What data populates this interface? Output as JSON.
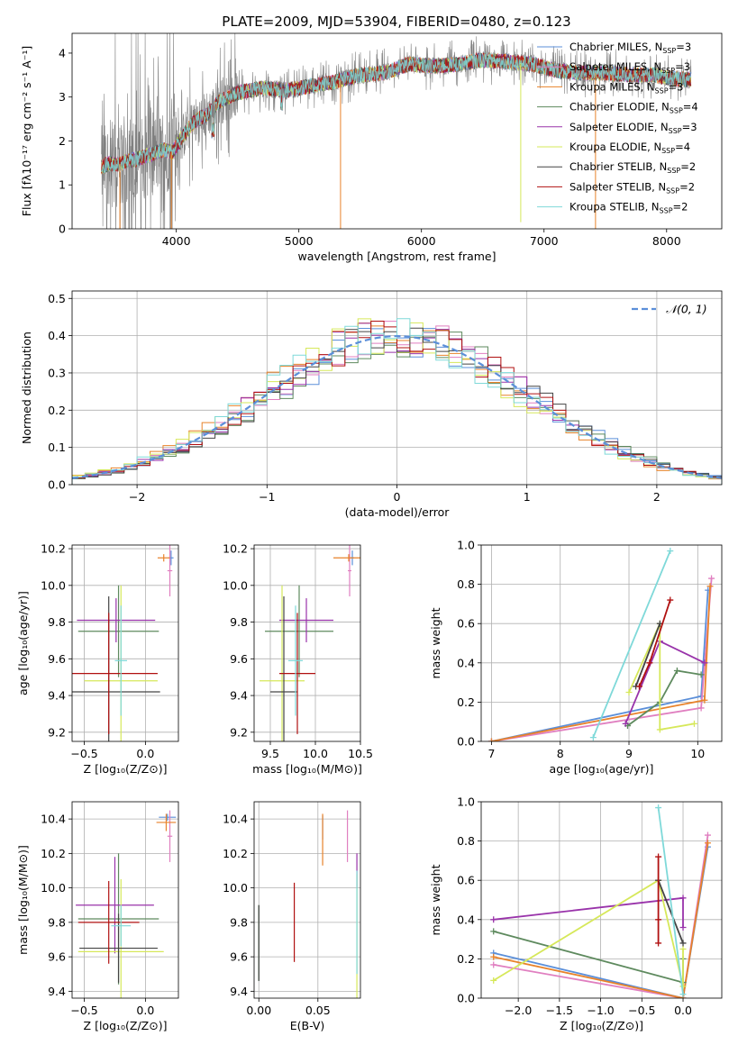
{
  "figure_title": "PLATE=2009, MJD=53904, FIBERID=0480, z=0.123",
  "colors": {
    "chabrier_miles": "#5b8fd9",
    "salpeter_miles": "#e07fc0",
    "kroupa_miles": "#e8822a",
    "chabrier_elodie": "#5e8a5e",
    "salpeter_elodie": "#9933aa",
    "kroupa_elodie": "#d6e85a",
    "chabrier_stelib": "#444444",
    "salpeter_stelib": "#b01010",
    "kroupa_stelib": "#7fd9d9",
    "data": "#808080",
    "normal": "#5b8fd9"
  },
  "chart_data": [
    {
      "id": "spectrum",
      "type": "line",
      "title": "",
      "xlabel": "wavelength [Angstrom, rest frame]",
      "ylabel": "Flux [fλ10⁻¹⁷ erg cm⁻² s⁻¹ A⁻¹]",
      "xlim": [
        3150,
        8450
      ],
      "ylim": [
        0,
        4.45
      ],
      "xticks": [
        4000,
        5000,
        6000,
        7000,
        8000
      ],
      "yticks": [
        0,
        1,
        2,
        3,
        4
      ],
      "grid": false,
      "legend_position": "top-right",
      "legend": [
        {
          "label": "Chabrier MILES, N",
          "sub": "SSP",
          "tail": "=3",
          "color": "#5b8fd9"
        },
        {
          "label": "Salpeter MILES, N",
          "sub": "SSP",
          "tail": "=3",
          "color": "#e07fc0"
        },
        {
          "label": "Kroupa MILES, N",
          "sub": "SSP",
          "tail": "=3",
          "color": "#e8822a"
        },
        {
          "label": "Chabrier ELODIE, N",
          "sub": "SSP",
          "tail": "=4",
          "color": "#5e8a5e"
        },
        {
          "label": "Salpeter ELODIE, N",
          "sub": "SSP",
          "tail": "=3",
          "color": "#9933aa"
        },
        {
          "label": "Kroupa ELODIE, N",
          "sub": "SSP",
          "tail": "=4",
          "color": "#d6e85a"
        },
        {
          "label": "Chabrier STELIB, N",
          "sub": "SSP",
          "tail": "=2",
          "color": "#444444"
        },
        {
          "label": "Salpeter STELIB, N",
          "sub": "SSP",
          "tail": "=2",
          "color": "#b01010"
        },
        {
          "label": "Kroupa STELIB, N",
          "sub": "SSP",
          "tail": "=2",
          "color": "#7fd9d9"
        }
      ],
      "continuum": {
        "x": [
          3390,
          3450,
          3520,
          3600,
          3700,
          3800,
          3900,
          3970,
          4050,
          4150,
          4250,
          4350,
          4500,
          4700,
          4900,
          5100,
          5300,
          5500,
          5700,
          5900,
          6100,
          6300,
          6500,
          6700,
          6900,
          7100,
          7300,
          7500,
          7700,
          7900,
          8100
        ],
        "y": [
          1.4,
          1.5,
          1.45,
          1.55,
          1.6,
          1.7,
          1.8,
          1.75,
          2.1,
          2.45,
          2.6,
          2.9,
          3.1,
          3.2,
          3.15,
          3.25,
          3.35,
          3.5,
          3.55,
          3.75,
          3.7,
          3.75,
          3.85,
          3.8,
          3.75,
          3.6,
          3.55,
          3.55,
          3.5,
          3.5,
          3.4
        ]
      }
    },
    {
      "id": "residuals",
      "type": "bar",
      "title": "",
      "xlabel": "(data-model)/error",
      "ylabel": "Normed distribution",
      "xlim": [
        -2.5,
        2.5
      ],
      "ylim": [
        0,
        0.52
      ],
      "xticks": [
        -2,
        -1,
        0,
        1,
        2
      ],
      "yticks": [
        0.0,
        0.1,
        0.2,
        0.3,
        0.4,
        0.5
      ],
      "grid": true,
      "legend_position": "top-right",
      "normal_label": "𝒩(0, 1)"
    },
    {
      "id": "age_vs_Z",
      "type": "scatter",
      "xlabel": "Z [log₁₀(Z/Z⊙)]",
      "ylabel": "age  [log₁₀(age/yr)]",
      "xlim": [
        -0.6,
        0.27
      ],
      "ylim": [
        9.15,
        10.22
      ],
      "xticks": [
        -0.5,
        0.0
      ],
      "yticks": [
        9.2,
        9.4,
        9.6,
        9.8,
        10.0,
        10.2
      ],
      "grid": true,
      "points": [
        {
          "color": "#5b8fd9",
          "x": 0.21,
          "xerr": 0.02,
          "y": 10.15,
          "yerr": 0.04
        },
        {
          "color": "#e07fc0",
          "x": 0.2,
          "xerr": 0.02,
          "y": 10.08,
          "yerr": 0.14
        },
        {
          "color": "#e8822a",
          "x": 0.15,
          "xerr": 0.05,
          "y": 10.15,
          "yerr": 0.02
        },
        {
          "color": "#5e8a5e",
          "x": -0.22,
          "xerr": 0.33,
          "y": 9.75,
          "yerr": 0.25
        },
        {
          "color": "#9933aa",
          "x": -0.24,
          "xerr": 0.32,
          "y": 9.81,
          "yerr": 0.12
        },
        {
          "color": "#d6e85a",
          "x": -0.2,
          "xerr": 0.3,
          "y": 9.48,
          "yerr": 0.52
        },
        {
          "color": "#444444",
          "x": -0.3,
          "xerr": 0.42,
          "y": 9.42,
          "yerr": 0.52
        },
        {
          "color": "#b01010",
          "x": -0.3,
          "xerr": 0.4,
          "y": 9.52,
          "yerr": 0.33
        },
        {
          "color": "#7fd9d9",
          "x": -0.2,
          "xerr": 0.05,
          "y": 9.59,
          "yerr": 0.3
        }
      ]
    },
    {
      "id": "age_vs_mass",
      "type": "scatter",
      "xlabel": "mass [log₁₀(M/M⊙)]",
      "ylabel": "",
      "xlim": [
        9.32,
        10.5
      ],
      "ylim": [
        9.15,
        10.22
      ],
      "xticks": [
        9.5,
        10.0,
        10.5
      ],
      "yticks": [
        9.2,
        9.4,
        9.6,
        9.8,
        10.0,
        10.2
      ],
      "grid": true,
      "points": [
        {
          "color": "#5b8fd9",
          "x": 10.41,
          "xerr": 0.02,
          "y": 10.15,
          "yerr": 0.04
        },
        {
          "color": "#e07fc0",
          "x": 10.38,
          "xerr": 0.02,
          "y": 10.08,
          "yerr": 0.14
        },
        {
          "color": "#e8822a",
          "x": 10.37,
          "xerr": 0.17,
          "y": 10.15,
          "yerr": 0.02
        },
        {
          "color": "#5e8a5e",
          "x": 9.82,
          "xerr": 0.38,
          "y": 9.75,
          "yerr": 0.25
        },
        {
          "color": "#9933aa",
          "x": 9.9,
          "xerr": 0.3,
          "y": 9.81,
          "yerr": 0.12
        },
        {
          "color": "#d6e85a",
          "x": 9.63,
          "xerr": 0.25,
          "y": 9.48,
          "yerr": 0.52
        },
        {
          "color": "#444444",
          "x": 9.65,
          "xerr": 0.15,
          "y": 9.42,
          "yerr": 0.52
        },
        {
          "color": "#b01010",
          "x": 9.8,
          "xerr": 0.2,
          "y": 9.52,
          "yerr": 0.33
        },
        {
          "color": "#7fd9d9",
          "x": 9.78,
          "xerr": 0.08,
          "y": 9.59,
          "yerr": 0.3
        }
      ]
    },
    {
      "id": "massweight_vs_age",
      "type": "line",
      "xlabel": "age  [log₁₀(age/yr)]",
      "ylabel": "mass weight",
      "xlim": [
        6.85,
        10.35
      ],
      "ylim": [
        0,
        1.0
      ],
      "xticks": [
        7,
        8,
        9,
        10
      ],
      "yticks": [
        0.0,
        0.2,
        0.4,
        0.6,
        0.8,
        1.0
      ],
      "grid": true,
      "series": [
        {
          "color": "#5b8fd9",
          "x": [
            7.0,
            10.05,
            10.15
          ],
          "y": [
            0.0,
            0.23,
            0.77
          ]
        },
        {
          "color": "#e07fc0",
          "x": [
            7.0,
            10.05,
            10.2
          ],
          "y": [
            0.0,
            0.17,
            0.83
          ]
        },
        {
          "color": "#e8822a",
          "x": [
            7.0,
            10.1,
            10.18
          ],
          "y": [
            0.0,
            0.21,
            0.79
          ]
        },
        {
          "color": "#5e8a5e",
          "x": [
            8.98,
            9.45,
            9.7,
            10.05
          ],
          "y": [
            0.08,
            0.2,
            0.36,
            0.34
          ]
        },
        {
          "color": "#9933aa",
          "x": [
            8.95,
            9.45,
            10.1
          ],
          "y": [
            0.09,
            0.51,
            0.4
          ]
        },
        {
          "color": "#d6e85a",
          "x": [
            9.0,
            9.45,
            9.45,
            9.95
          ],
          "y": [
            0.25,
            0.6,
            0.06,
            0.09
          ]
        },
        {
          "color": "#444444",
          "x": [
            9.1,
            9.45
          ],
          "y": [
            0.28,
            0.6
          ]
        },
        {
          "color": "#b01010",
          "x": [
            9.15,
            9.3,
            9.6
          ],
          "y": [
            0.28,
            0.4,
            0.72
          ]
        },
        {
          "color": "#7fd9d9",
          "x": [
            8.48,
            9.6
          ],
          "y": [
            0.02,
            0.97
          ]
        }
      ]
    },
    {
      "id": "mass_vs_Z",
      "type": "scatter",
      "xlabel": "Z [log₁₀(Z/Z⊙)]",
      "ylabel": "mass [log₁₀(M/M⊙)]",
      "xlim": [
        -0.6,
        0.27
      ],
      "ylim": [
        9.36,
        10.5
      ],
      "xticks": [
        -0.5,
        0.0
      ],
      "yticks": [
        9.4,
        9.6,
        9.8,
        10.0,
        10.2,
        10.4
      ],
      "grid": true,
      "points": [
        {
          "color": "#5b8fd9",
          "x": 0.18,
          "xerr": 0.07,
          "y": 10.41,
          "yerr": 0.02
        },
        {
          "color": "#e07fc0",
          "x": 0.2,
          "xerr": 0.02,
          "y": 10.3,
          "yerr": 0.15
        },
        {
          "color": "#e8822a",
          "x": 0.17,
          "xerr": 0.08,
          "y": 10.38,
          "yerr": 0.05
        },
        {
          "color": "#5e8a5e",
          "x": -0.22,
          "xerr": 0.33,
          "y": 9.82,
          "yerr": 0.38
        },
        {
          "color": "#9933aa",
          "x": -0.25,
          "xerr": 0.32,
          "y": 9.9,
          "yerr": 0.28
        },
        {
          "color": "#d6e85a",
          "x": -0.2,
          "xerr": 0.35,
          "y": 9.63,
          "yerr": 0.42
        },
        {
          "color": "#444444",
          "x": -0.22,
          "xerr": 0.32,
          "y": 9.65,
          "yerr": 0.2
        },
        {
          "color": "#b01010",
          "x": -0.3,
          "xerr": 0.25,
          "y": 9.8,
          "yerr": 0.24
        },
        {
          "color": "#7fd9d9",
          "x": -0.2,
          "xerr": 0.08,
          "y": 9.78,
          "yerr": 0.12
        }
      ]
    },
    {
      "id": "mass_vs_ebv",
      "type": "scatter",
      "xlabel": "E(B-V)",
      "ylabel": "",
      "xlim": [
        -0.004,
        0.086
      ],
      "ylim": [
        9.36,
        10.5
      ],
      "xticks": [
        0.0,
        0.05
      ],
      "yticks": [
        9.4,
        9.6,
        9.8,
        10.0,
        10.2,
        10.4
      ],
      "grid": true,
      "points": [
        {
          "color": "#5b8fd9",
          "x": 0.054,
          "xerr": 0.0,
          "y": 10.35,
          "yerr": 0.07
        },
        {
          "color": "#e07fc0",
          "x": 0.075,
          "xerr": 0.0,
          "y": 10.3,
          "yerr": 0.15
        },
        {
          "color": "#e8822a",
          "x": 0.054,
          "xerr": 0.0,
          "y": 10.28,
          "yerr": 0.15
        },
        {
          "color": "#5e8a5e",
          "x": 0.0,
          "xerr": 0.0,
          "y": 9.68,
          "yerr": 0.22
        },
        {
          "color": "#9933aa",
          "x": 0.083,
          "xerr": 0.0,
          "y": 10.1,
          "yerr": 0.1
        },
        {
          "color": "#d6e85a",
          "x": 0.083,
          "xerr": 0.0,
          "y": 9.7,
          "yerr": 0.38
        },
        {
          "color": "#444444",
          "x": 0.0,
          "xerr": 0.0,
          "y": 9.68,
          "yerr": 0.22
        },
        {
          "color": "#b01010",
          "x": 0.03,
          "xerr": 0.0,
          "y": 9.8,
          "yerr": 0.23
        },
        {
          "color": "#7fd9d9",
          "x": 0.083,
          "xerr": 0.0,
          "y": 9.8,
          "yerr": 0.3
        }
      ]
    },
    {
      "id": "massweight_vs_Z",
      "type": "line",
      "xlabel": "Z [log₁₀(Z/Z⊙)]",
      "ylabel": "mass weight",
      "xlim": [
        -2.45,
        0.47
      ],
      "ylim": [
        0,
        1.0
      ],
      "xticks": [
        -2.0,
        -1.5,
        -1.0,
        -0.5,
        0.0
      ],
      "yticks": [
        0.0,
        0.2,
        0.4,
        0.6,
        0.8,
        1.0
      ],
      "grid": true,
      "series": [
        {
          "color": "#5b8fd9",
          "x": [
            -2.3,
            0.0,
            0.3
          ],
          "y": [
            0.23,
            0.0,
            0.77
          ]
        },
        {
          "color": "#e07fc0",
          "x": [
            -2.3,
            0.0,
            0.3
          ],
          "y": [
            0.17,
            0.0,
            0.83
          ]
        },
        {
          "color": "#e8822a",
          "x": [
            -2.3,
            0.0,
            0.3
          ],
          "y": [
            0.21,
            0.0,
            0.79
          ]
        },
        {
          "color": "#5e8a5e",
          "x": [
            -2.3,
            0.0,
            0.0
          ],
          "y": [
            0.34,
            0.08,
            0.2
          ]
        },
        {
          "color": "#9933aa",
          "x": [
            -2.3,
            0.0,
            0.0
          ],
          "y": [
            0.4,
            0.51,
            0.36
          ]
        },
        {
          "color": "#d6e85a",
          "x": [
            -2.3,
            -0.3,
            0.0,
            0.0
          ],
          "y": [
            0.09,
            0.6,
            0.06,
            0.25
          ]
        },
        {
          "color": "#444444",
          "x": [
            -0.3,
            0.0
          ],
          "y": [
            0.6,
            0.28
          ]
        },
        {
          "color": "#b01010",
          "x": [
            -0.3,
            -0.3,
            -0.3
          ],
          "y": [
            0.28,
            0.4,
            0.72
          ]
        },
        {
          "color": "#7fd9d9",
          "x": [
            -0.3,
            0.0
          ],
          "y": [
            0.97,
            0.02
          ]
        }
      ]
    }
  ]
}
